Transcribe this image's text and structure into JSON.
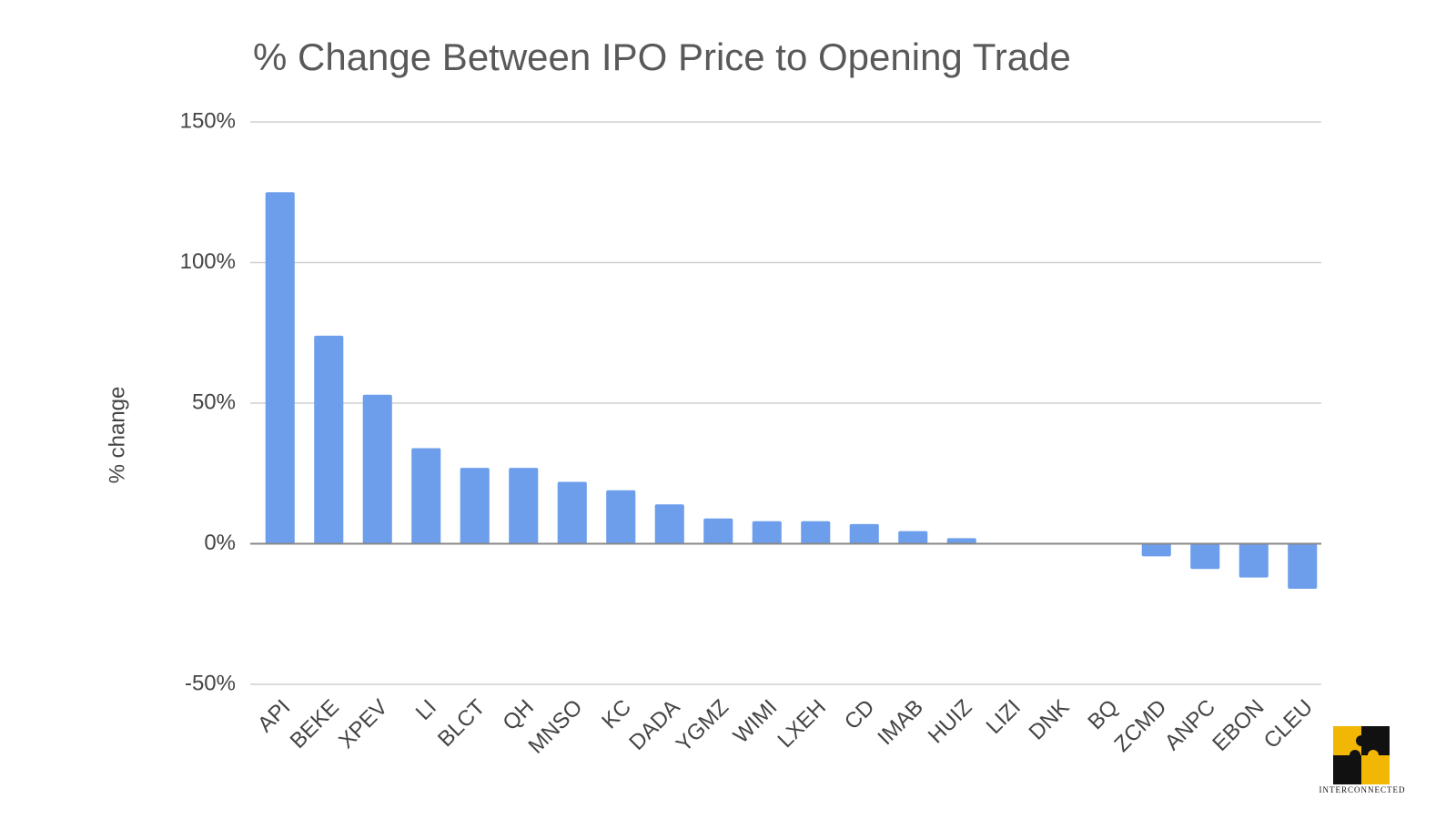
{
  "chart_data": {
    "type": "bar",
    "title": "% Change Between IPO Price to Opening Trade",
    "y_label": "% change",
    "categories": [
      "API",
      "BEKE",
      "XPEV",
      "LI",
      "BLCT",
      "QH",
      "MNSO",
      "KC",
      "DADA",
      "YGMZ",
      "WIMI",
      "LXEH",
      "CD",
      "IMAB",
      "HUIZ",
      "LIZI",
      "DNK",
      "BQ",
      "ZCMD",
      "ANPC",
      "EBON",
      "CLEU"
    ],
    "values": [
      125,
      74,
      53,
      34,
      27,
      27,
      22,
      19,
      14,
      9,
      8,
      8,
      7,
      4.5,
      2,
      0.3,
      0,
      0,
      -4.5,
      -9,
      -12,
      -16
    ],
    "color": "#6d9eeb",
    "ylim": [
      -50,
      150
    ],
    "yticks": [
      {
        "value": -50,
        "label": "-50%"
      },
      {
        "value": 0,
        "label": "0%"
      },
      {
        "value": 50,
        "label": "50%"
      },
      {
        "value": 100,
        "label": "100%"
      },
      {
        "value": 150,
        "label": "150%"
      }
    ],
    "grid": true
  },
  "watermark": "INTERCONNECTED"
}
